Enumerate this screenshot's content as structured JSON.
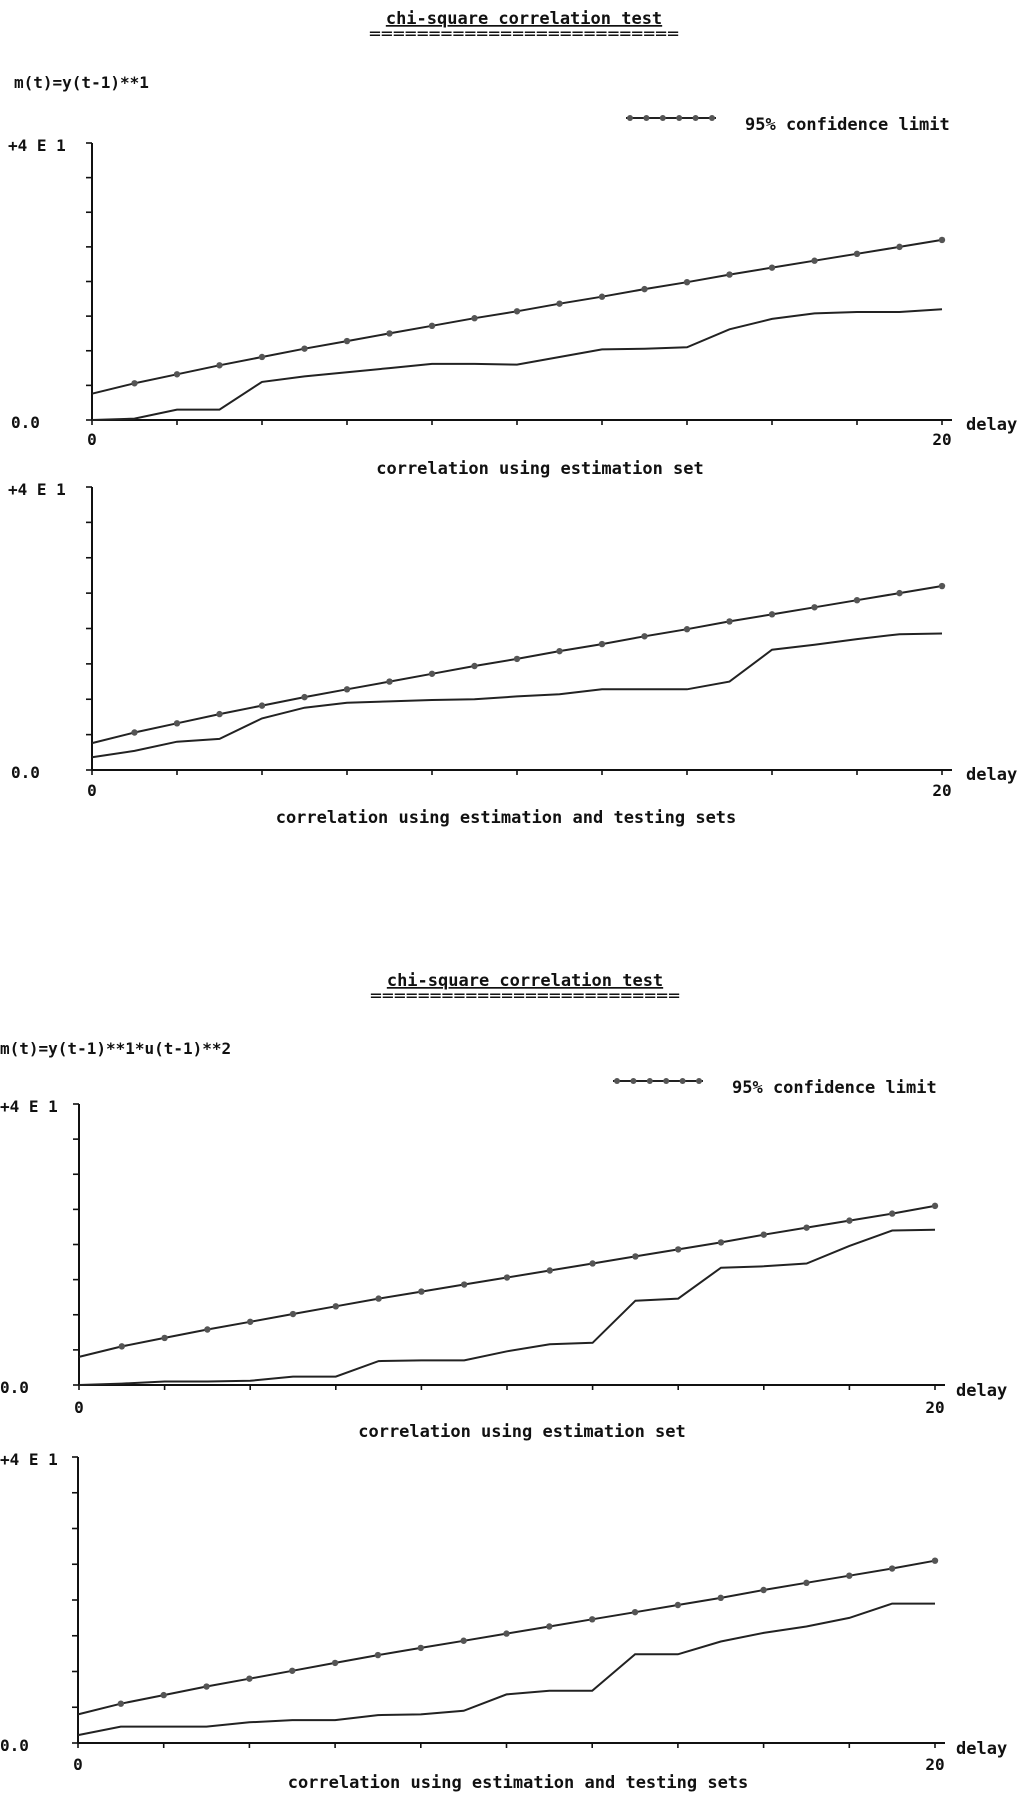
{
  "panels": [
    {
      "title": "chi-square correlation test",
      "title_underline": "==========================",
      "model": "m(t)=y(t-1)**1",
      "legend_label": "95% confidence limit",
      "chart_data": [
        {
          "type": "line",
          "title": "",
          "xlabel": "delay",
          "ylabel": "",
          "caption": "correlation using estimation set",
          "xlim": [
            0,
            20
          ],
          "ylim": [
            0,
            40
          ],
          "y_top_label": "+4 E 1",
          "y_zero_label": "0.0",
          "x_tick_labels": [
            "0",
            "20"
          ],
          "legend": "top-right",
          "series": [
            {
              "name": "95% confidence limit",
              "style": "dotted-line",
              "x": [
                0,
                1,
                2,
                3,
                4,
                5,
                6,
                7,
                8,
                9,
                10,
                11,
                12,
                13,
                14,
                15,
                16,
                17,
                18,
                19,
                20
              ],
              "values": [
                3.8,
                5.3,
                6.6,
                7.9,
                9.1,
                10.3,
                11.4,
                12.5,
                13.6,
                14.7,
                15.7,
                16.8,
                17.8,
                18.9,
                19.9,
                21.0,
                22.0,
                23.0,
                24.0,
                25.0,
                26.0
              ]
            },
            {
              "name": "",
              "style": "line",
              "x": [
                0,
                1,
                2,
                3,
                4,
                5,
                6,
                7,
                8,
                9,
                10,
                11,
                12,
                13,
                14,
                15,
                16,
                17,
                18,
                19,
                20
              ],
              "values": [
                0,
                0.2,
                1.5,
                1.5,
                5.5,
                6.3,
                6.9,
                7.5,
                8.1,
                8.1,
                8.0,
                9.1,
                10.2,
                10.3,
                10.5,
                13.1,
                14.6,
                15.4,
                15.6,
                15.6,
                16.0
              ]
            }
          ]
        },
        {
          "type": "line",
          "title": "",
          "xlabel": "delay",
          "ylabel": "",
          "caption": "correlation using estimation and testing sets",
          "xlim": [
            0,
            20
          ],
          "ylim": [
            0,
            40
          ],
          "y_top_label": "+4 E 1",
          "y_zero_label": "0.0",
          "x_tick_labels": [
            "0",
            "20"
          ],
          "series": [
            {
              "name": "95% confidence limit",
              "style": "dotted-line",
              "x": [
                0,
                1,
                2,
                3,
                4,
                5,
                6,
                7,
                8,
                9,
                10,
                11,
                12,
                13,
                14,
                15,
                16,
                17,
                18,
                19,
                20
              ],
              "values": [
                3.8,
                5.3,
                6.6,
                7.9,
                9.1,
                10.3,
                11.4,
                12.5,
                13.6,
                14.7,
                15.7,
                16.8,
                17.8,
                18.9,
                19.9,
                21.0,
                22.0,
                23.0,
                24.0,
                25.0,
                26.0
              ]
            },
            {
              "name": "",
              "style": "line",
              "x": [
                0,
                1,
                2,
                3,
                4,
                5,
                6,
                7,
                8,
                9,
                10,
                11,
                12,
                13,
                14,
                15,
                16,
                17,
                18,
                19,
                20
              ],
              "values": [
                1.8,
                2.7,
                4.0,
                4.4,
                7.3,
                8.8,
                9.5,
                9.7,
                9.9,
                10.0,
                10.4,
                10.7,
                11.4,
                11.4,
                11.4,
                12.5,
                17.0,
                17.7,
                18.5,
                19.2,
                19.3
              ]
            }
          ]
        }
      ]
    },
    {
      "title": "chi-square correlation test",
      "title_underline": "==========================",
      "model": "m(t)=y(t-1)**1*u(t-1)**2",
      "legend_label": "95% confidence limit",
      "chart_data": [
        {
          "type": "line",
          "title": "",
          "xlabel": "delay",
          "ylabel": "",
          "caption": "correlation using estimation set",
          "xlim": [
            0,
            20
          ],
          "ylim": [
            0,
            40
          ],
          "y_top_label": "+4 E 1",
          "y_zero_label": "0.0",
          "x_tick_labels": [
            "0",
            "20"
          ],
          "legend": "top-right",
          "series": [
            {
              "name": "95% confidence limit",
              "style": "dotted-line",
              "x": [
                0,
                1,
                2,
                3,
                4,
                5,
                6,
                7,
                8,
                9,
                10,
                11,
                12,
                13,
                14,
                15,
                16,
                17,
                18,
                19,
                20
              ],
              "values": [
                4.0,
                5.5,
                6.7,
                7.9,
                9.0,
                10.1,
                11.2,
                12.3,
                13.3,
                14.3,
                15.3,
                16.3,
                17.3,
                18.3,
                19.3,
                20.3,
                21.4,
                22.4,
                23.4,
                24.4,
                25.5
              ]
            },
            {
              "name": "",
              "style": "line",
              "x": [
                0,
                1,
                2,
                3,
                4,
                5,
                6,
                7,
                8,
                9,
                10,
                11,
                12,
                13,
                14,
                15,
                16,
                17,
                18,
                19,
                20
              ],
              "values": [
                0,
                0.2,
                0.5,
                0.5,
                0.6,
                1.2,
                1.2,
                3.4,
                3.5,
                3.5,
                4.8,
                5.8,
                6.0,
                12.0,
                12.3,
                16.7,
                16.9,
                17.3,
                19.8,
                22.0,
                22.1
              ]
            }
          ]
        },
        {
          "type": "line",
          "title": "",
          "xlabel": "delay",
          "ylabel": "",
          "caption": "correlation using estimation and testing sets",
          "xlim": [
            0,
            20
          ],
          "ylim": [
            0,
            40
          ],
          "y_top_label": "+4 E 1",
          "y_zero_label": "0.0",
          "x_tick_labels": [
            "0",
            "20"
          ],
          "series": [
            {
              "name": "95% confidence limit",
              "style": "dotted-line",
              "x": [
                0,
                1,
                2,
                3,
                4,
                5,
                6,
                7,
                8,
                9,
                10,
                11,
                12,
                13,
                14,
                15,
                16,
                17,
                18,
                19,
                20
              ],
              "values": [
                4.0,
                5.5,
                6.7,
                7.9,
                9.0,
                10.1,
                11.2,
                12.3,
                13.3,
                14.3,
                15.3,
                16.3,
                17.3,
                18.3,
                19.3,
                20.3,
                21.4,
                22.4,
                23.4,
                24.4,
                25.5
              ]
            },
            {
              "name": "",
              "style": "line",
              "x": [
                0,
                1,
                2,
                3,
                4,
                5,
                6,
                7,
                8,
                9,
                10,
                11,
                12,
                13,
                14,
                15,
                16,
                17,
                18,
                19,
                20
              ],
              "values": [
                1.1,
                2.3,
                2.3,
                2.3,
                2.9,
                3.2,
                3.2,
                3.9,
                4.0,
                4.5,
                6.8,
                7.3,
                7.3,
                12.4,
                12.4,
                14.2,
                15.4,
                16.3,
                17.5,
                19.5,
                19.5
              ]
            }
          ]
        }
      ]
    }
  ]
}
